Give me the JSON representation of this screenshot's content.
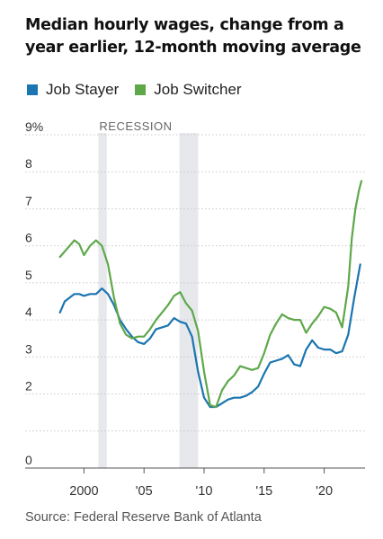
{
  "title": "Median hourly wages, change from a year earlier, 12-month moving average",
  "source": "Source: Federal Reserve Bank of Atlanta",
  "colors": {
    "stayer": "#1a75b0",
    "switcher": "#5ea84a",
    "recession": "#e6e8ec",
    "grid": "#c9c9c9",
    "axis": "#555555"
  },
  "chart_data": {
    "type": "line",
    "title": "Median hourly wages, change from a year earlier, 12-month moving average",
    "xlabel": "",
    "ylabel": "",
    "xlim": [
      1997.5,
      2023.4
    ],
    "ylim": [
      0,
      9
    ],
    "y_ticks": [
      0,
      1,
      2,
      3,
      4,
      5,
      6,
      7,
      8,
      9
    ],
    "y_tick_labels": [
      "0",
      "",
      "2",
      "3",
      "4",
      "5",
      "6",
      "7",
      "8",
      "9%"
    ],
    "x_ticks": [
      2000,
      2005,
      2010,
      2015,
      2020
    ],
    "x_tick_labels": [
      "2000",
      "'05",
      "'10",
      "'15",
      "'20"
    ],
    "grid": "horizontal dotted",
    "legend_position": "top-left",
    "annotation": "RECESSION",
    "recessions": [
      [
        2001.2,
        2001.9
      ],
      [
        2007.95,
        2009.5
      ]
    ],
    "series": [
      {
        "name": "Job Stayer",
        "x": [
          1998.0,
          1998.4,
          1998.8,
          1999.2,
          1999.6,
          2000.0,
          2000.5,
          2001.0,
          2001.5,
          2002.0,
          2002.5,
          2003.0,
          2003.5,
          2004.0,
          2004.5,
          2005.0,
          2005.5,
          2006.0,
          2006.5,
          2007.0,
          2007.5,
          2008.0,
          2008.5,
          2009.0,
          2009.5,
          2010.0,
          2010.5,
          2011.0,
          2011.5,
          2012.0,
          2012.5,
          2013.0,
          2013.5,
          2014.0,
          2014.5,
          2015.0,
          2015.5,
          2016.0,
          2016.5,
          2017.0,
          2017.5,
          2018.0,
          2018.5,
          2019.0,
          2019.5,
          2020.0,
          2020.5,
          2021.0,
          2021.5,
          2022.0,
          2022.5,
          2023.0
        ],
        "values": [
          4.2,
          4.5,
          4.6,
          4.7,
          4.7,
          4.65,
          4.7,
          4.7,
          4.85,
          4.7,
          4.4,
          4.0,
          3.75,
          3.55,
          3.4,
          3.35,
          3.5,
          3.75,
          3.8,
          3.85,
          4.05,
          3.95,
          3.9,
          3.55,
          2.6,
          1.9,
          1.65,
          1.65,
          1.75,
          1.85,
          1.9,
          1.9,
          1.95,
          2.05,
          2.2,
          2.55,
          2.85,
          2.9,
          2.95,
          3.05,
          2.8,
          2.75,
          3.2,
          3.45,
          3.25,
          3.2,
          3.2,
          3.1,
          3.15,
          3.6,
          4.6,
          5.5
        ]
      },
      {
        "name": "Job Switcher",
        "x": [
          1998.0,
          1998.4,
          1998.8,
          1999.2,
          1999.6,
          2000.0,
          2000.5,
          2001.0,
          2001.5,
          2002.0,
          2002.5,
          2003.0,
          2003.5,
          2004.0,
          2004.5,
          2005.0,
          2005.5,
          2006.0,
          2006.5,
          2007.0,
          2007.5,
          2008.0,
          2008.5,
          2009.0,
          2009.5,
          2010.0,
          2010.5,
          2011.0,
          2011.5,
          2012.0,
          2012.5,
          2013.0,
          2013.5,
          2014.0,
          2014.5,
          2015.0,
          2015.5,
          2016.0,
          2016.5,
          2017.0,
          2017.5,
          2018.0,
          2018.5,
          2019.0,
          2019.5,
          2020.0,
          2020.5,
          2021.0,
          2021.5,
          2022.0,
          2022.3,
          2022.6,
          2022.9,
          2023.1
        ],
        "values": [
          5.7,
          5.85,
          6.0,
          6.15,
          6.05,
          5.75,
          6.0,
          6.15,
          6.0,
          5.5,
          4.6,
          3.9,
          3.6,
          3.5,
          3.55,
          3.55,
          3.75,
          4.0,
          4.2,
          4.4,
          4.65,
          4.75,
          4.45,
          4.25,
          3.7,
          2.6,
          1.7,
          1.65,
          2.1,
          2.35,
          2.5,
          2.75,
          2.7,
          2.65,
          2.7,
          3.1,
          3.6,
          3.9,
          4.15,
          4.05,
          4.0,
          4.0,
          3.65,
          3.9,
          4.1,
          4.35,
          4.3,
          4.2,
          3.8,
          4.9,
          6.2,
          7.0,
          7.5,
          7.75
        ]
      }
    ]
  }
}
